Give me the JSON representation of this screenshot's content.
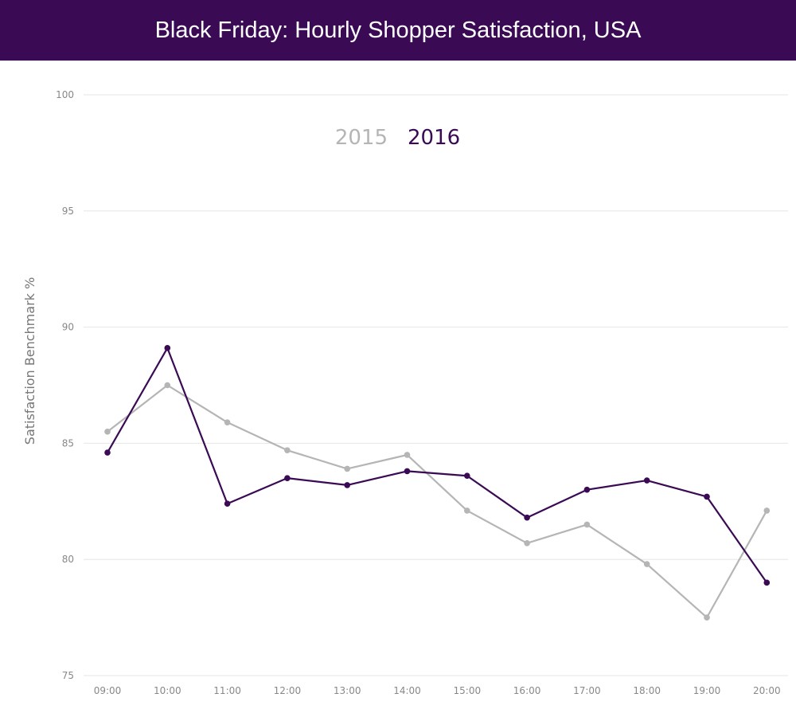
{
  "header": {
    "title": "Black Friday: Hourly Shopper Satisfaction, USA"
  },
  "colors": {
    "banner": "#3b0a55",
    "series_2015": "#b5b5b5",
    "series_2016": "#3b0a55",
    "grid": "#e6e6e6"
  },
  "chart_data": {
    "type": "line",
    "title": "Black Friday: Hourly Shopper Satisfaction, USA",
    "xlabel": "",
    "ylabel": "Satisfaction Benchmark %",
    "ylim": [
      75,
      100
    ],
    "yticks": [
      "75",
      "80",
      "85",
      "90",
      "95",
      "100"
    ],
    "categories": [
      "09:00",
      "10:00",
      "11:00",
      "12:00",
      "13:00",
      "14:00",
      "15:00",
      "16:00",
      "17:00",
      "18:00",
      "19:00",
      "20:00"
    ],
    "legend_position": "top-center",
    "grid": true,
    "series": [
      {
        "name": "2015",
        "color": "#b5b5b5",
        "values": [
          85.5,
          87.5,
          85.9,
          84.7,
          83.9,
          84.5,
          82.1,
          80.7,
          81.5,
          79.8,
          77.5,
          82.1
        ]
      },
      {
        "name": "2016",
        "color": "#3b0a55",
        "values": [
          84.6,
          89.1,
          82.4,
          83.5,
          83.2,
          83.8,
          83.6,
          81.8,
          83.0,
          83.4,
          82.7,
          79.0
        ]
      }
    ]
  }
}
